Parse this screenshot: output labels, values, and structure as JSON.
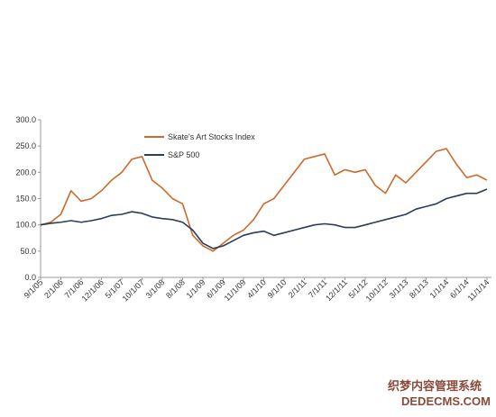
{
  "chart_data": {
    "type": "line",
    "categories": [
      "9/1/05",
      null,
      "2/1/06",
      null,
      "7/1/06",
      null,
      "12/1/06",
      null,
      "5/1/07",
      null,
      "10/1/07",
      null,
      "3/1/08",
      null,
      "8/1/08",
      null,
      "1/1/09",
      null,
      "6/1/09",
      null,
      "11/1/09",
      null,
      "4/1/10",
      null,
      "9/1/10",
      null,
      "2/1/11",
      null,
      "7/1/11",
      null,
      "12/1/11",
      null,
      "5/1/12",
      null,
      "10/1/12",
      null,
      "3/1/13",
      null,
      "8/1/13",
      null,
      "1/1/14",
      null,
      "6/1/14",
      null,
      "11/1/14"
    ],
    "series": [
      {
        "name": "Skate's Art Stocks Index",
        "color": "#cc6a2c",
        "values": [
          100,
          105,
          120,
          165,
          145,
          150,
          165,
          185,
          200,
          225,
          230,
          185,
          170,
          150,
          140,
          80,
          60,
          50,
          65,
          80,
          90,
          110,
          140,
          150,
          175,
          200,
          225,
          230,
          235,
          195,
          205,
          200,
          205,
          175,
          160,
          195,
          180,
          200,
          220,
          240,
          245,
          215,
          190,
          195,
          185
        ]
      },
      {
        "name": "S&P 500",
        "color": "#2b3d55",
        "values": [
          100,
          103,
          105,
          108,
          105,
          108,
          112,
          118,
          120,
          125,
          122,
          115,
          112,
          110,
          105,
          90,
          65,
          55,
          60,
          70,
          80,
          85,
          88,
          80,
          85,
          90,
          95,
          100,
          102,
          100,
          95,
          95,
          100,
          105,
          110,
          115,
          120,
          130,
          135,
          140,
          150,
          155,
          160,
          160,
          168
        ]
      }
    ],
    "ylim": [
      0,
      300
    ],
    "yticks": [
      {
        "value": 0,
        "label": "0.0"
      },
      {
        "value": 50,
        "label": "50.0"
      },
      {
        "value": 100,
        "label": "100.0"
      },
      {
        "value": 150,
        "label": "150.0"
      },
      {
        "value": 200,
        "label": "200.0"
      },
      {
        "value": 250,
        "label": "250.0"
      },
      {
        "value": 300,
        "label": "300.0"
      }
    ],
    "grid": false,
    "watermark": [
      "织梦内容管理系统",
      "DEDECMS.COM"
    ]
  }
}
